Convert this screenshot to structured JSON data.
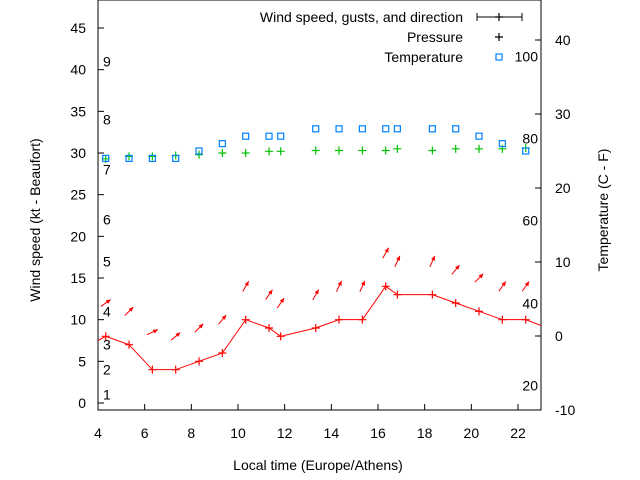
{
  "chart_data": {
    "type": "line",
    "xlabel": "Local time (Europe/Athens)",
    "ylabel": "Wind speed (kt - Beaufort)",
    "y2label": "Temperature (C - F)",
    "xlim": [
      4,
      23
    ],
    "ylim": [
      -1,
      48
    ],
    "y2lim": [
      -10,
      45
    ],
    "xticks": [
      4,
      6,
      8,
      10,
      12,
      14,
      16,
      18,
      20,
      22
    ],
    "yticks": [
      0,
      5,
      10,
      15,
      20,
      25,
      30,
      35,
      40,
      45
    ],
    "y2ticks": [
      -10,
      0,
      10,
      20,
      30,
      40
    ],
    "beaufort_labels": [
      {
        "label": "1",
        "kt": 1
      },
      {
        "label": "2",
        "kt": 4
      },
      {
        "label": "3",
        "kt": 7
      },
      {
        "label": "4",
        "kt": 11
      },
      {
        "label": "5",
        "kt": 17
      },
      {
        "label": "6",
        "kt": 22
      },
      {
        "label": "7",
        "kt": 28
      },
      {
        "label": "8",
        "kt": 34
      },
      {
        "label": "9",
        "kt": 41
      }
    ],
    "fahrenheit_labels": [
      {
        "label": "20",
        "c": -6.7
      },
      {
        "label": "40",
        "c": 4.4
      },
      {
        "label": "60",
        "c": 15.6
      },
      {
        "label": "80",
        "c": 26.7
      },
      {
        "label": "100",
        "c": 37.8
      }
    ],
    "legend": [
      "Wind speed, gusts, and direction",
      "Pressure",
      "Temperature"
    ],
    "legend_position": "top-right",
    "x": [
      4.33,
      5.33,
      6.33,
      7.33,
      8.33,
      9.33,
      10.33,
      11.33,
      11.83,
      13.33,
      14.33,
      15.33,
      16.33,
      16.83,
      18.33,
      19.33,
      20.33,
      21.33,
      22.33
    ],
    "series": [
      {
        "name": "Wind speed",
        "axis": "y",
        "color": "#ff0000",
        "values": [
          8,
          7,
          4,
          4,
          5,
          6,
          10,
          9,
          8,
          9,
          10,
          10,
          14,
          13,
          13,
          12,
          11,
          10,
          10
        ]
      },
      {
        "name": "Gusts",
        "axis": "y",
        "color": "#ff0000",
        "values": [
          12,
          11,
          8.5,
          8,
          9,
          10,
          14,
          13,
          12,
          13,
          14,
          14,
          18,
          17,
          17,
          16,
          15,
          14,
          14
        ],
        "direction_deg": [
          35,
          45,
          25,
          40,
          45,
          50,
          60,
          55,
          55,
          60,
          65,
          65,
          60,
          65,
          65,
          50,
          45,
          55,
          55
        ]
      },
      {
        "name": "Pressure",
        "axis": "y",
        "color": "#00c000",
        "values": [
          29.3,
          29.6,
          29.6,
          29.7,
          29.8,
          30.0,
          30.0,
          30.2,
          30.2,
          30.3,
          30.3,
          30.3,
          30.3,
          30.5,
          30.3,
          30.5,
          30.5,
          30.5,
          30.6
        ]
      },
      {
        "name": "Temperature",
        "axis": "y2",
        "color": "#0080ff",
        "values": [
          24,
          24,
          24,
          24,
          25,
          26,
          27,
          27,
          27,
          28,
          28,
          28,
          28,
          28,
          28,
          28,
          27,
          26,
          25
        ]
      }
    ]
  }
}
